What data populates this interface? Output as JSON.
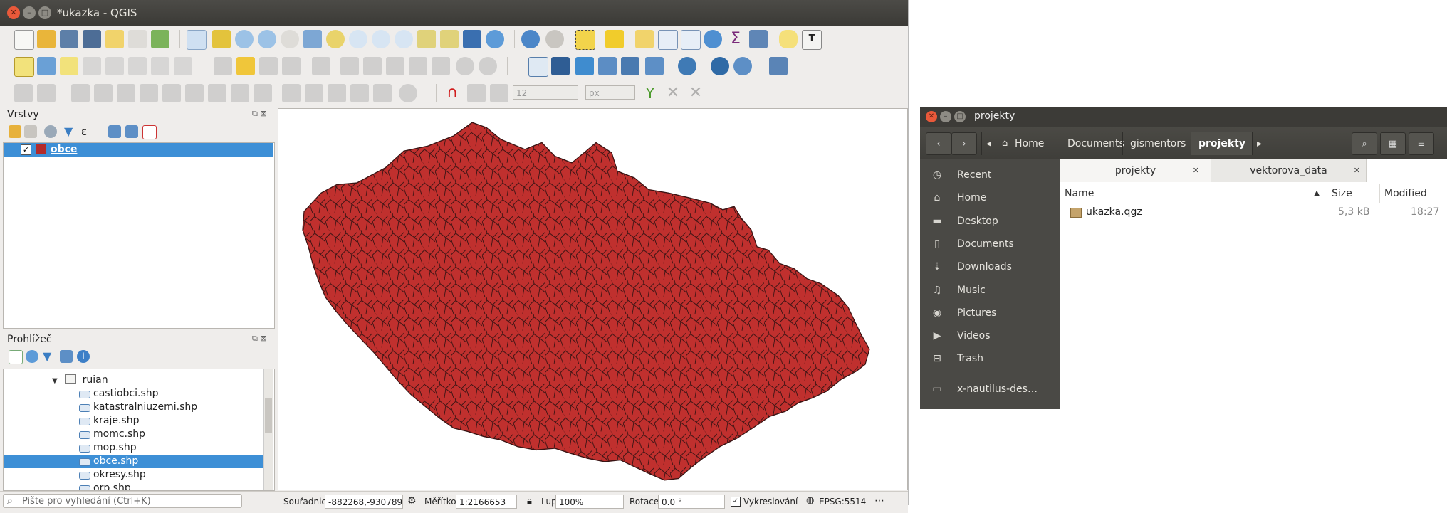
{
  "qgis": {
    "title": "*ukazka - QGIS",
    "layers_panel": {
      "title": "Vrstvy",
      "layers": [
        {
          "name": "obce",
          "checked": true,
          "color": "#b32b2b"
        }
      ]
    },
    "browser_panel": {
      "title": "Prohlížeč",
      "folder": "ruian",
      "items": [
        "castiobci.shp",
        "katastralniuzemi.shp",
        "kraje.shp",
        "momc.shp",
        "mop.shp",
        "obce.shp",
        "okresy.shp",
        "orp.shp"
      ],
      "selected": "obce.shp"
    },
    "snapping": {
      "tolerance": "12",
      "unit": "px"
    },
    "map": {
      "fill_color": "#c0302e",
      "stroke_color": "#3a1414"
    },
    "statusbar": {
      "search_placeholder": "Pište pro vyhledání (Ctrl+K)",
      "coord_label": "Souřadnice",
      "coord_value": "-882268,-930789",
      "scale_label": "Měřítko",
      "scale_value": "1:2166653",
      "magnifier_label": "Lupa",
      "magnifier_value": "100%",
      "rotation_label": "Rotace",
      "rotation_value": "0.0 °",
      "render_label": "Vykreslování",
      "crs": "EPSG:5514"
    }
  },
  "nautilus": {
    "title": "projekty",
    "breadcrumbs": [
      "Home",
      "Documents",
      "gismentors",
      "projekty"
    ],
    "sidebar": [
      {
        "label": "Recent",
        "icon": "clock-icon"
      },
      {
        "label": "Home",
        "icon": "home-icon"
      },
      {
        "label": "Desktop",
        "icon": "folder-icon"
      },
      {
        "label": "Documents",
        "icon": "document-icon"
      },
      {
        "label": "Downloads",
        "icon": "download-icon"
      },
      {
        "label": "Music",
        "icon": "music-icon"
      },
      {
        "label": "Pictures",
        "icon": "camera-icon"
      },
      {
        "label": "Videos",
        "icon": "video-icon"
      },
      {
        "label": "Trash",
        "icon": "trash-icon"
      },
      {
        "label": "x-nautilus-des…",
        "icon": "computer-icon"
      }
    ],
    "tabs": [
      "projekty",
      "vektorova_data"
    ],
    "columns": [
      "Name",
      "Size",
      "Modified"
    ],
    "files": [
      {
        "name": "ukazka.qgz",
        "size": "5,3 kB",
        "modified": "18:27"
      }
    ]
  }
}
